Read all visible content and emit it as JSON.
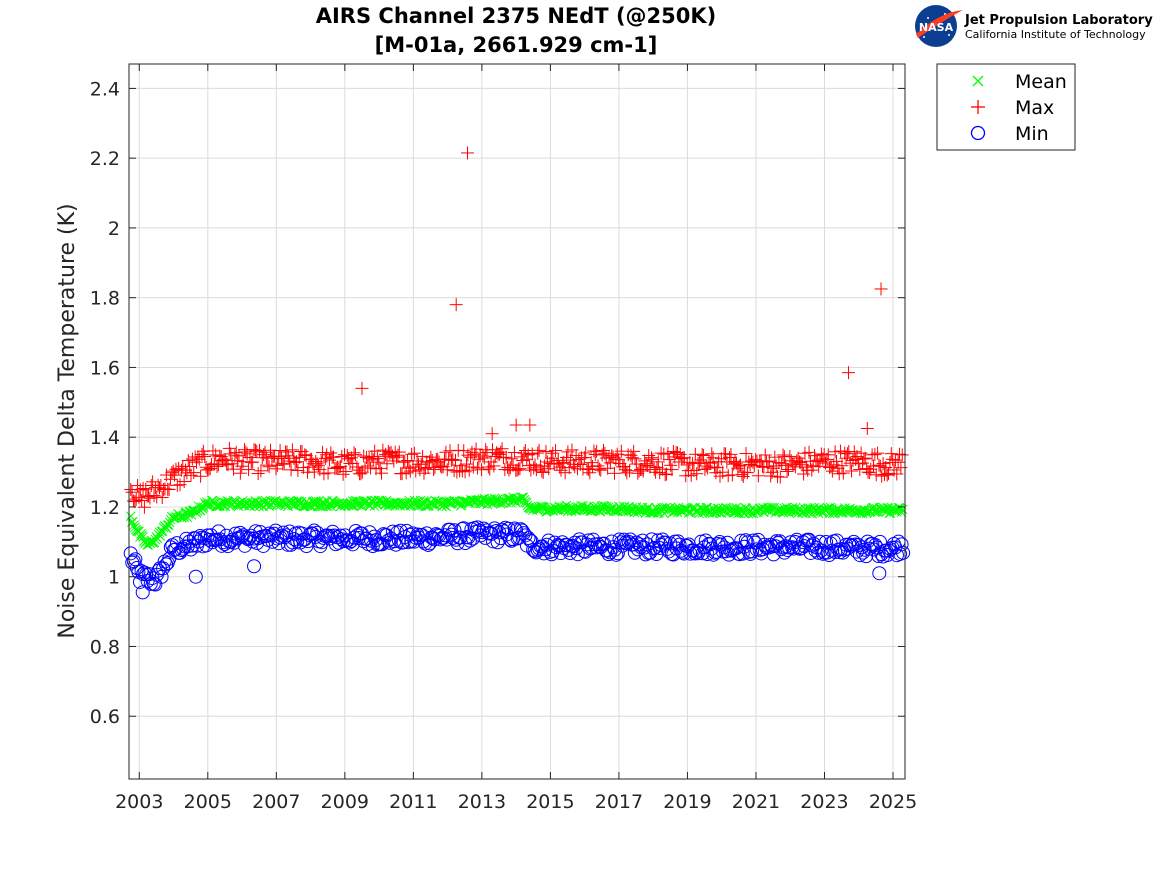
{
  "logo": {
    "agency": "NASA",
    "org_name": "Jet Propulsion Laboratory",
    "org_sub": "California Institute of Technology"
  },
  "colors": {
    "mean": "#00ff00",
    "max": "#ff0000",
    "min": "#0000ff",
    "grid": "#dcdcdc",
    "axis": "#262626"
  },
  "chart_data": {
    "type": "scatter",
    "title": [
      "AIRS Channel 2375 NEdT (@250K)",
      "[M-01a, 2661.929 cm-1]"
    ],
    "xlabel": "",
    "ylabel": "Noise Equivalent Delta Temperature (K)",
    "xlim": [
      2002.7,
      2025.35
    ],
    "ylim": [
      0.42,
      2.47
    ],
    "xticks": [
      2003,
      2005,
      2007,
      2009,
      2011,
      2013,
      2015,
      2017,
      2019,
      2021,
      2023,
      2025
    ],
    "xtick_labels": [
      "2003",
      "2005",
      "2007",
      "2009",
      "2011",
      "2013",
      "2015",
      "2017",
      "2019",
      "2021",
      "2023",
      "2025"
    ],
    "yticks": [
      0.6,
      0.8,
      1.0,
      1.2,
      1.4,
      1.6,
      1.8,
      2.0,
      2.2,
      2.4
    ],
    "ytick_labels": [
      "0.6",
      "0.8",
      "1",
      "1.2",
      "1.4",
      "1.6",
      "1.8",
      "2",
      "2.2",
      "2.4"
    ],
    "grid": true,
    "legend_position": "outside-top-right",
    "series": [
      {
        "name": "Mean",
        "marker": "x",
        "color": "#00ff00",
        "x": [
          2002.75,
          2003.0,
          2003.25,
          2003.5,
          2003.75,
          2004.0,
          2004.5,
          2005.0,
          2005.5,
          2006.0,
          2007.0,
          2008.0,
          2009.0,
          2010.0,
          2011.0,
          2012.0,
          2013.0,
          2014.0,
          2014.2,
          2014.4,
          2015.0,
          2016.0,
          2017.0,
          2018.0,
          2019.0,
          2020.0,
          2021.0,
          2022.0,
          2023.0,
          2024.0,
          2025.0,
          2025.3
        ],
        "y": [
          1.17,
          1.12,
          1.09,
          1.11,
          1.14,
          1.17,
          1.18,
          1.21,
          1.21,
          1.21,
          1.21,
          1.21,
          1.21,
          1.21,
          1.21,
          1.21,
          1.215,
          1.22,
          1.22,
          1.195,
          1.195,
          1.195,
          1.195,
          1.19,
          1.19,
          1.19,
          1.19,
          1.19,
          1.19,
          1.19,
          1.19,
          1.19
        ]
      },
      {
        "name": "Max",
        "marker": "+",
        "color": "#ff0000",
        "x": [
          2002.75,
          2003.0,
          2003.5,
          2004.0,
          2004.5,
          2005.0,
          2005.5,
          2006.0,
          2007.0,
          2008.0,
          2009.0,
          2010.0,
          2011.0,
          2012.0,
          2013.0,
          2014.0,
          2015.0,
          2016.0,
          2017.0,
          2018.0,
          2019.0,
          2020.0,
          2021.0,
          2022.0,
          2023.0,
          2024.0,
          2025.0,
          2025.3
        ],
        "y": [
          1.26,
          1.22,
          1.25,
          1.28,
          1.31,
          1.33,
          1.34,
          1.33,
          1.33,
          1.33,
          1.32,
          1.33,
          1.33,
          1.33,
          1.34,
          1.34,
          1.33,
          1.33,
          1.33,
          1.33,
          1.32,
          1.32,
          1.32,
          1.32,
          1.33,
          1.33,
          1.32,
          1.33
        ],
        "outliers": [
          {
            "x": 2009.5,
            "y": 1.54
          },
          {
            "x": 2012.25,
            "y": 1.78
          },
          {
            "x": 2012.58,
            "y": 2.215
          },
          {
            "x": 2014.0,
            "y": 1.435
          },
          {
            "x": 2014.4,
            "y": 1.435
          },
          {
            "x": 2023.7,
            "y": 1.585
          },
          {
            "x": 2024.65,
            "y": 1.825
          },
          {
            "x": 2024.25,
            "y": 1.425
          },
          {
            "x": 2013.3,
            "y": 1.41
          }
        ]
      },
      {
        "name": "Min",
        "marker": "o",
        "color": "#0000ff",
        "x": [
          2002.75,
          2003.0,
          2003.5,
          2004.0,
          2004.5,
          2005.0,
          2005.5,
          2006.0,
          2007.0,
          2008.0,
          2009.0,
          2010.0,
          2011.0,
          2012.0,
          2013.0,
          2014.0,
          2014.2,
          2014.4,
          2015.0,
          2016.0,
          2017.0,
          2018.0,
          2019.0,
          2020.0,
          2021.0,
          2022.0,
          2023.0,
          2024.0,
          2025.0,
          2025.3
        ],
        "y": [
          1.06,
          1.0,
          0.99,
          1.08,
          1.09,
          1.11,
          1.11,
          1.11,
          1.11,
          1.11,
          1.11,
          1.11,
          1.11,
          1.115,
          1.12,
          1.12,
          1.12,
          1.09,
          1.085,
          1.085,
          1.085,
          1.085,
          1.085,
          1.085,
          1.085,
          1.085,
          1.085,
          1.08,
          1.08,
          1.09
        ],
        "outliers": [
          {
            "x": 2004.65,
            "y": 1.0
          },
          {
            "x": 2006.35,
            "y": 1.03
          },
          {
            "x": 2003.1,
            "y": 0.955
          },
          {
            "x": 2024.6,
            "y": 1.01
          }
        ]
      }
    ]
  }
}
